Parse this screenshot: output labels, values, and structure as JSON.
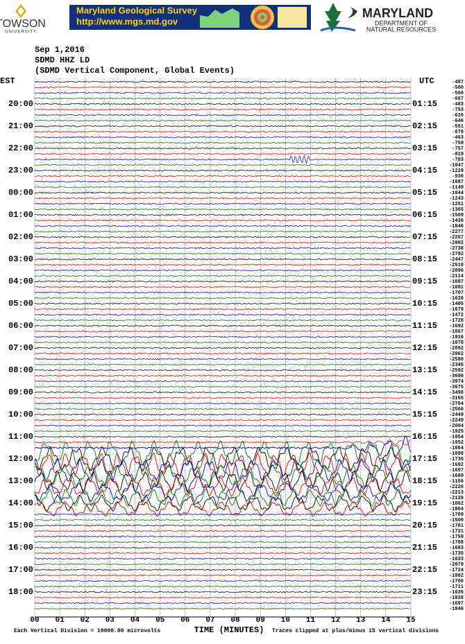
{
  "header": {
    "towson": "TOWSON",
    "towson_sub": "UNIVERSITY",
    "banner_title": "Maryland Geological Survey",
    "banner_url": "http://www.mgs.md.gov",
    "dnr_title": "MARYLAND",
    "dnr_sub1": "DEPARTMENT OF",
    "dnr_sub2": "NATURAL RESOURCES"
  },
  "info": {
    "date": "Sep 1,2016",
    "station": "SDMD HHZ LD",
    "description": "(SDMD Vertical Component, Global Events)"
  },
  "axis": {
    "left_label": "EST",
    "right_label": "UTC",
    "est_hours": [
      "20:00",
      "21:00",
      "22:00",
      "23:00",
      "00:00",
      "01:00",
      "02:00",
      "03:00",
      "04:00",
      "05:00",
      "06:00",
      "07:00",
      "08:00",
      "09:00",
      "10:00",
      "11:00",
      "12:00",
      "13:00",
      "14:00",
      "15:00",
      "16:00",
      "17:00",
      "18:00"
    ],
    "utc_hours": [
      "01:15",
      "02:15",
      "03:15",
      "04:15",
      "05:15",
      "06:15",
      "07:15",
      "08:15",
      "09:15",
      "10:15",
      "11:15",
      "12:15",
      "13:15",
      "14:15",
      "15:15",
      "16:15",
      "17:15",
      "18:15",
      "19:15",
      "20:15",
      "21:15",
      "22:15",
      "23:15"
    ],
    "minutes": [
      "00",
      "01",
      "02",
      "03",
      "04",
      "05",
      "06",
      "07",
      "08",
      "09",
      "10",
      "11",
      "12",
      "13",
      "14",
      "15"
    ],
    "x_label": "TIME (MINUTES)"
  },
  "offsets": [
    -487,
    -500,
    -560,
    -667,
    -483,
    -753,
    -620,
    -646,
    -551,
    -878,
    -463,
    -759,
    -757,
    -819,
    -783,
    -1047,
    -1229,
    -930,
    -1087,
    -1149,
    -1044,
    -1243,
    -1251,
    -1365,
    -1509,
    -1436,
    -1846,
    -2277,
    -2257,
    -2902,
    -2738,
    -2792,
    -2447,
    -2518,
    -2090,
    -2114,
    -1887,
    -1881,
    -1707,
    -1626,
    -1405,
    -1679,
    -1472,
    -1728,
    -1692,
    -1867,
    -1916,
    -1878,
    -2092,
    -2062,
    -2580,
    -2345,
    -2592,
    -3686,
    -3974,
    -3675,
    -3498,
    -3155,
    -2704,
    -2560,
    -2449,
    -2249,
    -2094,
    -1925,
    -1954,
    -1952,
    -1864,
    -1898,
    -1735,
    -1692,
    -1607,
    -1689,
    -1156,
    -2220,
    -2213,
    -2120,
    -1862,
    -1804,
    -1709,
    -1500,
    -1761,
    -1721,
    -1759,
    -1708,
    -1683,
    -1735,
    -1633,
    -2079,
    -1724,
    -1802,
    -1766,
    -1711,
    -1635,
    -1828,
    -1697,
    -1846
  ],
  "footer": {
    "left": "Each Vertical Division = 10000.00 microvolts",
    "right": "Traces clipped at plus/minus 15 vertical divisions"
  }
}
